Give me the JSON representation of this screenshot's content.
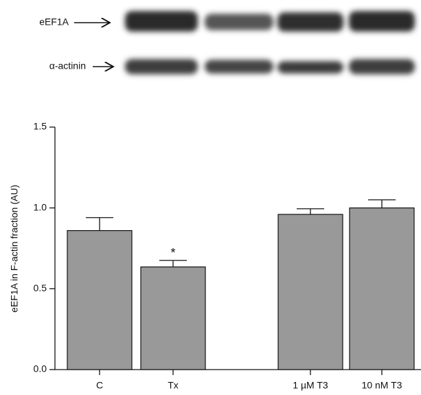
{
  "blot": {
    "rows": [
      {
        "label": "eEF1A"
      },
      {
        "label": "α-actinin"
      }
    ]
  },
  "chart_data": {
    "type": "bar",
    "ylabel": "eEF1A in F-actin fraction (AU)",
    "categories": [
      "C",
      "Tx",
      "1 µM T3",
      "10 nM T3"
    ],
    "values": [
      0.86,
      0.635,
      0.96,
      1.0
    ],
    "errors": [
      0.08,
      0.04,
      0.035,
      0.05
    ],
    "color": "#999999",
    "ylim": [
      0,
      1.5
    ],
    "yticks": [
      {
        "value": 0,
        "label": "0.0"
      },
      0.5,
      {
        "value": 1,
        "label": "1.0"
      },
      {
        "value": 1.5,
        "label": "1.5"
      }
    ],
    "annotations": [
      {
        "text": "*",
        "x": "Tx"
      }
    ]
  }
}
